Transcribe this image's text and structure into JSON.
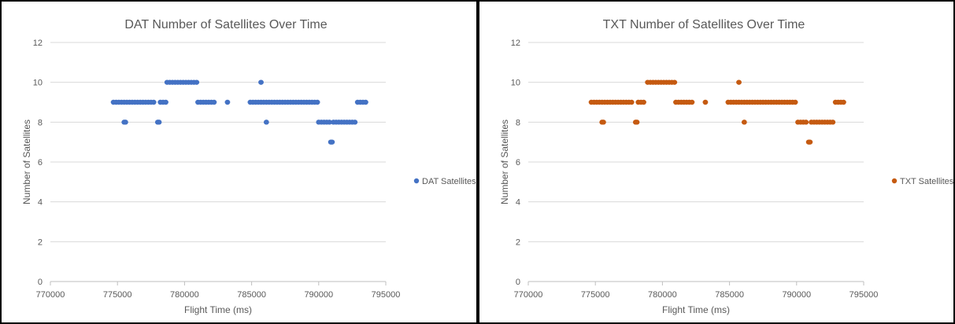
{
  "chart_data": [
    {
      "type": "scatter",
      "title": "DAT Number of Satellites Over Time",
      "xlabel": "Flight Time (ms)",
      "ylabel": "Number of Satellites",
      "xlim": [
        770000,
        795000
      ],
      "ylim": [
        0,
        12
      ],
      "x_ticks": [
        "770000",
        "775000",
        "780000",
        "785000",
        "790000",
        "795000"
      ],
      "y_ticks": [
        "0",
        "2",
        "4",
        "6",
        "8",
        "10",
        "12"
      ],
      "grid": true,
      "legend_position": "right",
      "series": [
        {
          "name": "DAT Satellites",
          "color": "#4472C4",
          "points": [
            [
              774700,
              9
            ],
            [
              774900,
              9
            ],
            [
              775100,
              9
            ],
            [
              775300,
              9
            ],
            [
              775500,
              9
            ],
            [
              775500,
              8
            ],
            [
              775600,
              8
            ],
            [
              775700,
              9
            ],
            [
              775900,
              9
            ],
            [
              776100,
              9
            ],
            [
              776300,
              9
            ],
            [
              776500,
              9
            ],
            [
              776700,
              9
            ],
            [
              776900,
              9
            ],
            [
              777100,
              9
            ],
            [
              777300,
              9
            ],
            [
              777500,
              9
            ],
            [
              777700,
              9
            ],
            [
              778000,
              8
            ],
            [
              778100,
              8
            ],
            [
              778200,
              9
            ],
            [
              778400,
              9
            ],
            [
              778600,
              9
            ],
            [
              778700,
              10
            ],
            [
              778900,
              10
            ],
            [
              779100,
              10
            ],
            [
              779300,
              10
            ],
            [
              779500,
              10
            ],
            [
              779700,
              10
            ],
            [
              779900,
              10
            ],
            [
              780100,
              10
            ],
            [
              780300,
              10
            ],
            [
              780500,
              10
            ],
            [
              780700,
              10
            ],
            [
              780900,
              10
            ],
            [
              781000,
              9
            ],
            [
              781200,
              9
            ],
            [
              781400,
              9
            ],
            [
              781600,
              9
            ],
            [
              781800,
              9
            ],
            [
              782000,
              9
            ],
            [
              782200,
              9
            ],
            [
              783200,
              9
            ],
            [
              784900,
              9
            ],
            [
              785100,
              9
            ],
            [
              785300,
              9
            ],
            [
              785500,
              9
            ],
            [
              785700,
              10
            ],
            [
              785700,
              9
            ],
            [
              785900,
              9
            ],
            [
              786100,
              8
            ],
            [
              786100,
              9
            ],
            [
              786300,
              9
            ],
            [
              786500,
              9
            ],
            [
              786700,
              9
            ],
            [
              786900,
              9
            ],
            [
              787100,
              9
            ],
            [
              787300,
              9
            ],
            [
              787500,
              9
            ],
            [
              787700,
              9
            ],
            [
              787900,
              9
            ],
            [
              788100,
              9
            ],
            [
              788300,
              9
            ],
            [
              788500,
              9
            ],
            [
              788700,
              9
            ],
            [
              788900,
              9
            ],
            [
              789100,
              9
            ],
            [
              789300,
              9
            ],
            [
              789500,
              9
            ],
            [
              789700,
              9
            ],
            [
              789900,
              9
            ],
            [
              790000,
              8
            ],
            [
              790200,
              8
            ],
            [
              790400,
              8
            ],
            [
              790600,
              8
            ],
            [
              790800,
              8
            ],
            [
              790900,
              7
            ],
            [
              791000,
              7
            ],
            [
              791100,
              8
            ],
            [
              791300,
              8
            ],
            [
              791500,
              8
            ],
            [
              791700,
              8
            ],
            [
              791900,
              8
            ],
            [
              792100,
              8
            ],
            [
              792300,
              8
            ],
            [
              792500,
              8
            ],
            [
              792700,
              8
            ],
            [
              792900,
              9
            ],
            [
              793100,
              9
            ],
            [
              793300,
              9
            ],
            [
              793500,
              9
            ]
          ]
        }
      ]
    },
    {
      "type": "scatter",
      "title": "TXT Number of Satellites Over Time",
      "xlabel": "Flight Time (ms)",
      "ylabel": "Number of Satellites",
      "xlim": [
        770000,
        795000
      ],
      "ylim": [
        0,
        12
      ],
      "x_ticks": [
        "770000",
        "775000",
        "780000",
        "785000",
        "790000",
        "795000"
      ],
      "y_ticks": [
        "0",
        "2",
        "4",
        "6",
        "8",
        "10",
        "12"
      ],
      "grid": true,
      "legend_position": "right",
      "series": [
        {
          "name": "TXT Satellites",
          "color": "#C55A11",
          "points": [
            [
              774700,
              9
            ],
            [
              774900,
              9
            ],
            [
              775100,
              9
            ],
            [
              775300,
              9
            ],
            [
              775500,
              9
            ],
            [
              775500,
              8
            ],
            [
              775600,
              8
            ],
            [
              775700,
              9
            ],
            [
              775900,
              9
            ],
            [
              776100,
              9
            ],
            [
              776300,
              9
            ],
            [
              776500,
              9
            ],
            [
              776700,
              9
            ],
            [
              776900,
              9
            ],
            [
              777100,
              9
            ],
            [
              777300,
              9
            ],
            [
              777500,
              9
            ],
            [
              777700,
              9
            ],
            [
              778000,
              8
            ],
            [
              778100,
              8
            ],
            [
              778200,
              9
            ],
            [
              778400,
              9
            ],
            [
              778600,
              9
            ],
            [
              778900,
              10
            ],
            [
              779100,
              10
            ],
            [
              779300,
              10
            ],
            [
              779500,
              10
            ],
            [
              779700,
              10
            ],
            [
              779900,
              10
            ],
            [
              780100,
              10
            ],
            [
              780300,
              10
            ],
            [
              780500,
              10
            ],
            [
              780700,
              10
            ],
            [
              780900,
              10
            ],
            [
              781000,
              9
            ],
            [
              781200,
              9
            ],
            [
              781400,
              9
            ],
            [
              781600,
              9
            ],
            [
              781800,
              9
            ],
            [
              782000,
              9
            ],
            [
              782200,
              9
            ],
            [
              783200,
              9
            ],
            [
              784900,
              9
            ],
            [
              785100,
              9
            ],
            [
              785300,
              9
            ],
            [
              785500,
              9
            ],
            [
              785700,
              10
            ],
            [
              785700,
              9
            ],
            [
              785900,
              9
            ],
            [
              786100,
              8
            ],
            [
              786100,
              9
            ],
            [
              786300,
              9
            ],
            [
              786500,
              9
            ],
            [
              786700,
              9
            ],
            [
              786900,
              9
            ],
            [
              787100,
              9
            ],
            [
              787300,
              9
            ],
            [
              787500,
              9
            ],
            [
              787700,
              9
            ],
            [
              787900,
              9
            ],
            [
              788100,
              9
            ],
            [
              788300,
              9
            ],
            [
              788500,
              9
            ],
            [
              788700,
              9
            ],
            [
              788900,
              9
            ],
            [
              789100,
              9
            ],
            [
              789300,
              9
            ],
            [
              789500,
              9
            ],
            [
              789700,
              9
            ],
            [
              789900,
              9
            ],
            [
              790100,
              8
            ],
            [
              790300,
              8
            ],
            [
              790500,
              8
            ],
            [
              790700,
              8
            ],
            [
              790900,
              7
            ],
            [
              791000,
              7
            ],
            [
              791100,
              8
            ],
            [
              791300,
              8
            ],
            [
              791500,
              8
            ],
            [
              791700,
              8
            ],
            [
              791900,
              8
            ],
            [
              792100,
              8
            ],
            [
              792300,
              8
            ],
            [
              792500,
              8
            ],
            [
              792700,
              8
            ],
            [
              792900,
              9
            ],
            [
              793100,
              9
            ],
            [
              793300,
              9
            ],
            [
              793500,
              9
            ]
          ]
        }
      ]
    }
  ]
}
